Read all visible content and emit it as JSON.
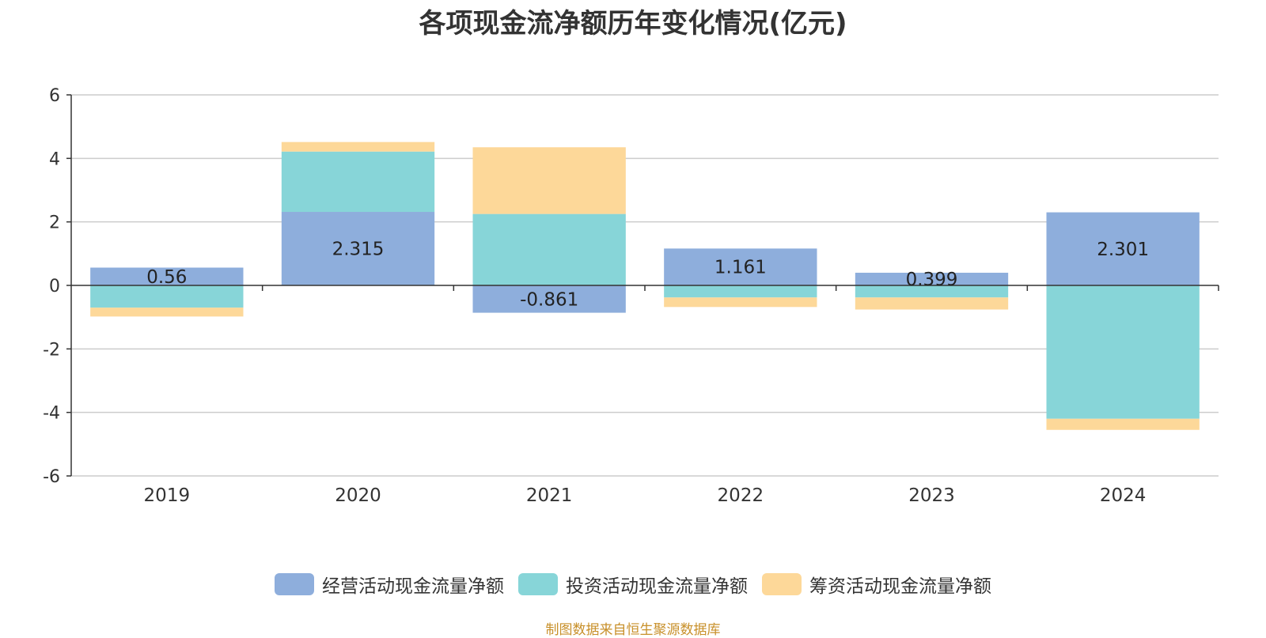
{
  "chart_data": {
    "type": "bar",
    "stacked": true,
    "title": "各项现金流净额历年变化情况(亿元)",
    "categories": [
      "2019",
      "2020",
      "2021",
      "2022",
      "2023",
      "2024"
    ],
    "ylim": [
      -6,
      6
    ],
    "yticks": [
      6,
      4,
      2,
      0,
      -2,
      -4,
      -6
    ],
    "ytick_labels": [
      "6",
      "4",
      "2",
      "0",
      "-2",
      "-4",
      "-6"
    ],
    "grid": true,
    "legend_position": "bottom",
    "series": [
      {
        "name": "经营活动现金流量净额",
        "color": "#8eaedc",
        "values": [
          0.56,
          2.315,
          -0.861,
          1.161,
          0.399,
          2.301
        ],
        "labels": [
          "0.56",
          "2.315",
          "-0.861",
          "1.161",
          "0.399",
          "2.301"
        ]
      },
      {
        "name": "投资活动现金流量净额",
        "color": "#87d5d8",
        "values": [
          -0.7,
          1.9,
          2.25,
          -0.38,
          -0.38,
          -4.2
        ]
      },
      {
        "name": "筹资活动现金流量净额",
        "color": "#fdd899",
        "values": [
          -0.28,
          0.3,
          2.1,
          -0.3,
          -0.38,
          -0.35
        ]
      }
    ]
  },
  "source": "制图数据来自恒生聚源数据库"
}
